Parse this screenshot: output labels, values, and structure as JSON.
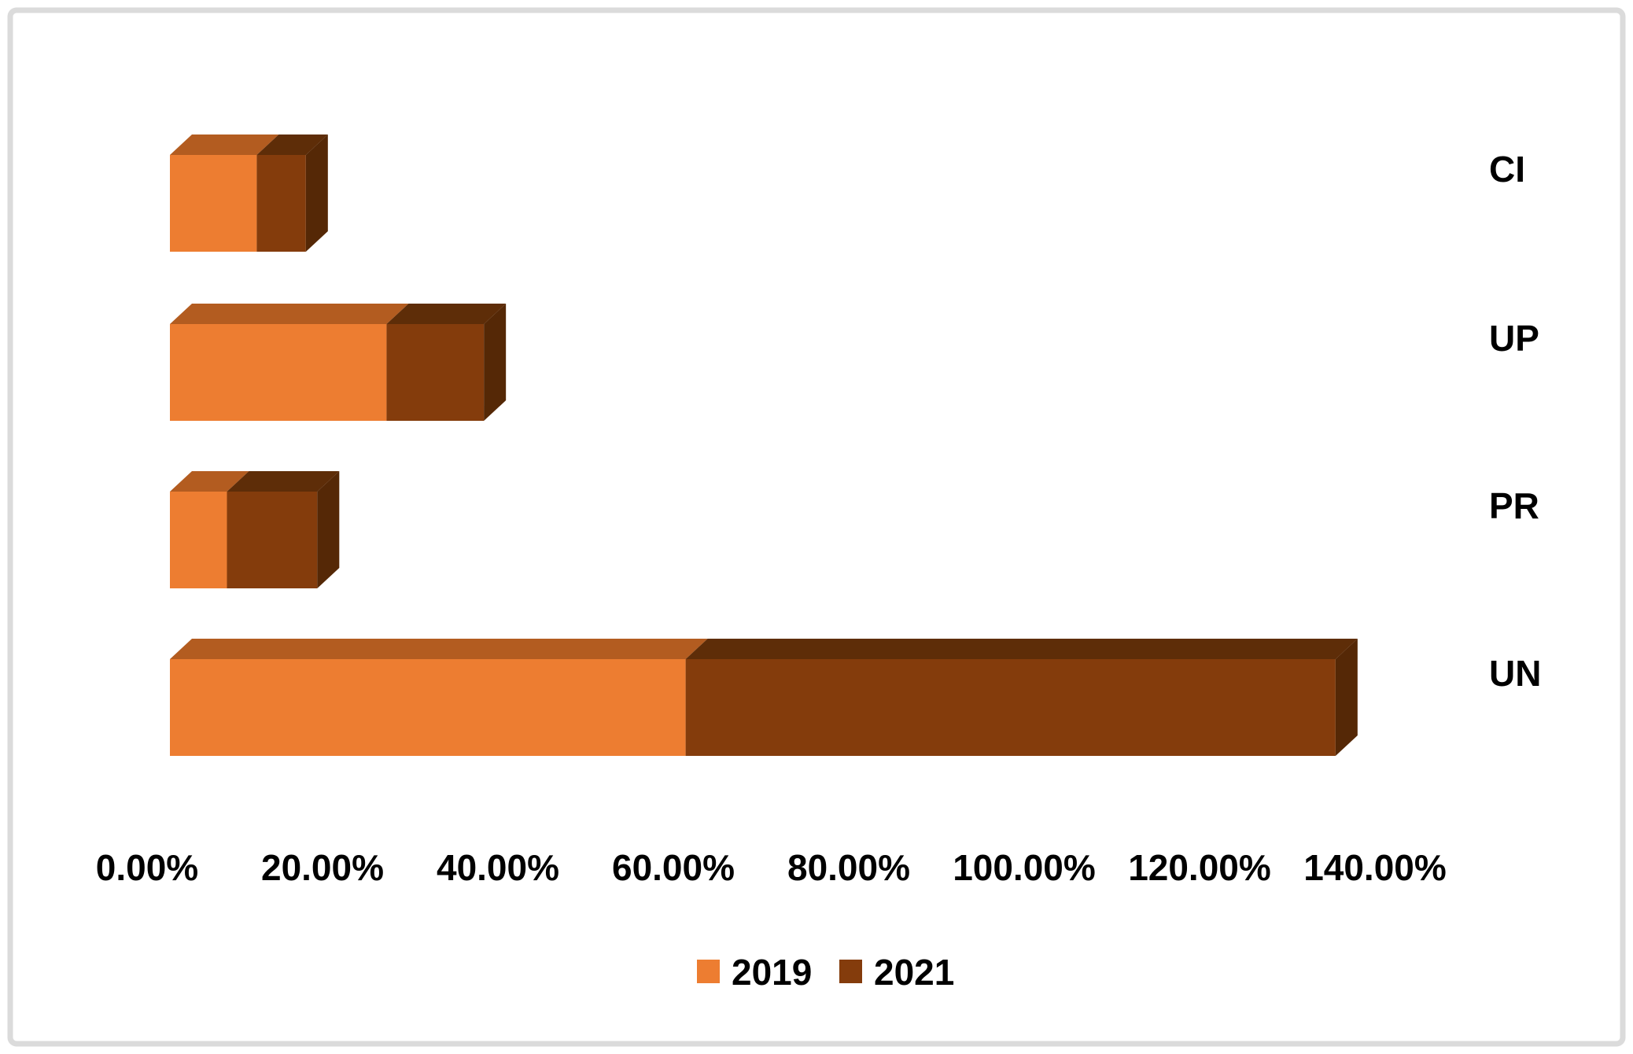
{
  "chart_data": {
    "type": "bar",
    "variant": "horizontal-stacked-3d",
    "categories": [
      "CI",
      "UP",
      "PR",
      "UN"
    ],
    "series": [
      {
        "name": "2019",
        "values": [
          9.9,
          24.7,
          6.5,
          58.8
        ],
        "colors": {
          "front": "#ED7D31",
          "top": "#B35C20"
        }
      },
      {
        "name": "2021",
        "values": [
          5.6,
          11.1,
          10.3,
          74.1
        ],
        "colors": {
          "front": "#843C0C",
          "top": "#5E2D08",
          "end": "#552806"
        }
      }
    ],
    "x_axis": {
      "min": 0,
      "max": 140,
      "tick_step": 20,
      "tick_labels": [
        "0.00%",
        "20.00%",
        "40.00%",
        "60.00%",
        "80.00%",
        "100.00%",
        "120.00%",
        "140.00%"
      ],
      "unit": "%",
      "gridlines": false
    },
    "category_axis": {
      "side": "right"
    },
    "legend": {
      "position": "bottom",
      "entries": [
        {
          "label": "2019",
          "color": "#ED7D31"
        },
        {
          "label": "2021",
          "color": "#843C0C"
        }
      ]
    },
    "background": "#FFFFFF",
    "border_color": "#DBDBDB",
    "text_color": "#000000"
  }
}
